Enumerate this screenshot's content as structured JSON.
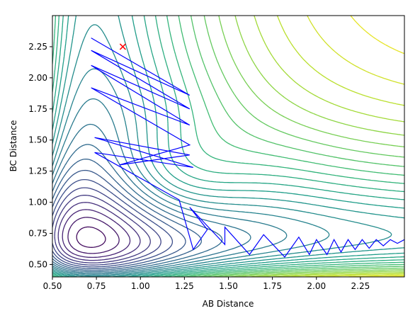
{
  "chart_data": {
    "type": "line",
    "title": "",
    "xlabel": "AB Distance",
    "ylabel": "BC Distance",
    "xlim": [
      0.5,
      2.5
    ],
    "ylim": [
      0.4,
      2.5
    ],
    "xticks": [
      0.5,
      0.75,
      1.0,
      1.25,
      1.5,
      1.75,
      2.0,
      2.25
    ],
    "xtick_labels": [
      "0.50",
      "0.75",
      "1.00",
      "1.25",
      "1.50",
      "1.75",
      "2.00",
      "2.25"
    ],
    "yticks": [
      0.5,
      0.75,
      1.0,
      1.25,
      1.5,
      1.75,
      2.0,
      2.25
    ],
    "ytick_labels": [
      "0.50",
      "0.75",
      "1.00",
      "1.25",
      "1.50",
      "1.75",
      "2.00",
      "2.25"
    ],
    "grid": false,
    "contour": {
      "colormap": "viridis",
      "x_well": 0.74,
      "y_well": 0.74,
      "level_count": 30
    },
    "trajectory": {
      "color": "#0000ff",
      "points": [
        [
          0.72,
          2.32
        ],
        [
          1.28,
          1.86
        ],
        [
          0.72,
          2.22
        ],
        [
          1.28,
          1.75
        ],
        [
          0.72,
          2.1
        ],
        [
          1.28,
          1.62
        ],
        [
          0.72,
          1.92
        ],
        [
          1.28,
          1.46
        ],
        [
          0.88,
          1.3
        ],
        [
          1.28,
          1.38
        ],
        [
          0.74,
          1.52
        ],
        [
          1.3,
          1.28
        ],
        [
          0.74,
          1.4
        ],
        [
          1.22,
          1.02
        ],
        [
          1.3,
          0.62
        ],
        [
          1.38,
          0.78
        ],
        [
          1.28,
          0.96
        ],
        [
          1.48,
          0.66
        ],
        [
          1.48,
          0.8
        ],
        [
          1.62,
          0.58
        ],
        [
          1.7,
          0.74
        ],
        [
          1.82,
          0.56
        ],
        [
          1.9,
          0.72
        ],
        [
          1.96,
          0.58
        ],
        [
          2.0,
          0.7
        ],
        [
          2.06,
          0.58
        ],
        [
          2.1,
          0.7
        ],
        [
          2.14,
          0.6
        ],
        [
          2.18,
          0.7
        ],
        [
          2.22,
          0.62
        ],
        [
          2.26,
          0.7
        ],
        [
          2.3,
          0.63
        ],
        [
          2.34,
          0.7
        ],
        [
          2.38,
          0.65
        ],
        [
          2.42,
          0.7
        ],
        [
          2.46,
          0.67
        ],
        [
          2.5,
          0.7
        ]
      ]
    },
    "start_marker": {
      "x": 0.9,
      "y": 2.25,
      "symbol": "x",
      "color": "#ff0000"
    }
  }
}
